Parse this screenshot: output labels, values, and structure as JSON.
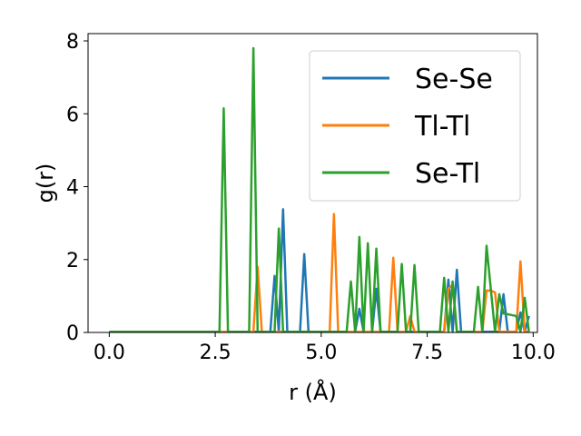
{
  "chart_data": {
    "type": "line",
    "xlabel": "r (Å)",
    "ylabel": "g(r)",
    "xlim": [
      -0.5,
      10.1
    ],
    "ylim": [
      0,
      8.2
    ],
    "xticks": [
      0.0,
      2.5,
      5.0,
      7.5,
      10.0
    ],
    "xtick_labels": [
      "0.0",
      "2.5",
      "5.0",
      "7.5",
      "10.0"
    ],
    "yticks": [
      0,
      2,
      4,
      6,
      8
    ],
    "ytick_labels": [
      "0",
      "2",
      "4",
      "6",
      "8"
    ],
    "grid": false,
    "legend_position": "top-right",
    "series": [
      {
        "name": "Se-Se",
        "color": "#1f77b4",
        "x": [
          0,
          3.8,
          3.9,
          4.0,
          4.1,
          4.2,
          4.5,
          4.6,
          4.7,
          5.8,
          5.9,
          6.0,
          6.2,
          6.3,
          6.4,
          7.9,
          8.0,
          8.1,
          8.2,
          8.3,
          9.2,
          9.3,
          9.4,
          9.6,
          9.7,
          9.8,
          9.9
        ],
        "y": [
          0.02,
          0.02,
          1.55,
          0.02,
          3.38,
          0.02,
          0.02,
          2.15,
          0.02,
          0.02,
          0.65,
          0.02,
          0.02,
          1.2,
          0.02,
          0.02,
          1.45,
          0.02,
          1.72,
          0.02,
          0.02,
          1.05,
          0.02,
          0.02,
          0.55,
          0.02,
          0.45
        ]
      },
      {
        "name": "Tl-Tl",
        "color": "#ff7f0e",
        "x": [
          0,
          3.4,
          3.5,
          3.6,
          5.2,
          5.3,
          5.4,
          6.6,
          6.7,
          6.8,
          7.0,
          7.1,
          7.2,
          7.9,
          8.0,
          8.1,
          8.2,
          8.8,
          8.9,
          9.0,
          9.1,
          9.2,
          9.3,
          9.6,
          9.7,
          9.8,
          9.9
        ],
        "y": [
          0.02,
          0.02,
          1.8,
          0.02,
          0.02,
          3.25,
          0.02,
          0.02,
          2.05,
          0.02,
          0.02,
          0.45,
          0.02,
          0.02,
          1.2,
          1.3,
          0.02,
          0.02,
          1.15,
          1.15,
          1.1,
          0.02,
          0.02,
          0.02,
          1.95,
          0.02,
          0.02
        ]
      },
      {
        "name": "Se-Tl",
        "color": "#2ca02c",
        "x": [
          0,
          2.6,
          2.7,
          2.8,
          3.3,
          3.4,
          3.5,
          3.9,
          4.0,
          4.1,
          5.6,
          5.7,
          5.8,
          5.9,
          6.0,
          6.1,
          6.2,
          6.3,
          6.4,
          6.8,
          6.9,
          7.0,
          7.1,
          7.2,
          7.3,
          7.8,
          7.9,
          8.0,
          8.1,
          8.2,
          8.6,
          8.7,
          8.8,
          8.9,
          9.1,
          9.2,
          9.3,
          9.4,
          9.6,
          9.7,
          9.8,
          9.9
        ],
        "y": [
          0.02,
          0.02,
          6.15,
          0.02,
          0.02,
          7.8,
          0.02,
          0.02,
          2.85,
          0.02,
          0.02,
          1.4,
          0.02,
          2.62,
          0.02,
          2.45,
          0.02,
          2.3,
          0.02,
          0.02,
          1.88,
          0.02,
          0.02,
          1.85,
          0.02,
          0.02,
          1.5,
          0.02,
          1.4,
          0.02,
          0.02,
          1.25,
          0.02,
          2.38,
          0.02,
          1.05,
          0.52,
          0.5,
          0.45,
          0.02,
          0.95,
          0.02
        ]
      }
    ]
  }
}
